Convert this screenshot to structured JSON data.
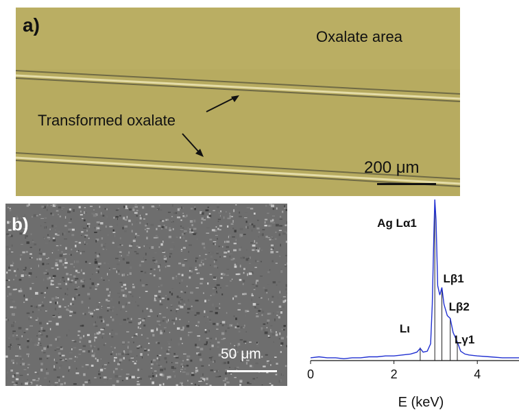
{
  "panel_a": {
    "label": "a)",
    "region_label": "Oxalate area",
    "annotation": "Transformed oxalate",
    "scale_bar": "200 μm",
    "bg_color": "#b9ad62"
  },
  "panel_b": {
    "label": "b)",
    "scale_bar": "50 μm"
  },
  "chart_data": {
    "type": "line",
    "xlabel": "E (keV)",
    "ylabel": "",
    "xlim": [
      0,
      5
    ],
    "x_ticks": [
      "0",
      "2",
      "4"
    ],
    "peak_labels": [
      {
        "text": "Ag Lα1",
        "energy": 2.98
      },
      {
        "text": "Lβ1",
        "energy": 3.15
      },
      {
        "text": "Lβ2",
        "energy": 3.35
      },
      {
        "text": "Lι",
        "energy": 2.63
      },
      {
        "text": "Lγ1",
        "energy": 3.52
      }
    ],
    "reference_lines": [
      2.63,
      2.98,
      3.15,
      3.35,
      3.52
    ],
    "series": [
      {
        "color": "#1f2fd1",
        "points": [
          [
            0,
            3
          ],
          [
            0.2,
            4
          ],
          [
            0.4,
            3
          ],
          [
            0.6,
            3
          ],
          [
            0.8,
            2
          ],
          [
            1.0,
            3
          ],
          [
            1.2,
            3
          ],
          [
            1.4,
            4
          ],
          [
            1.6,
            4
          ],
          [
            1.8,
            5
          ],
          [
            2.0,
            5
          ],
          [
            2.2,
            6
          ],
          [
            2.4,
            7
          ],
          [
            2.55,
            9
          ],
          [
            2.63,
            13
          ],
          [
            2.7,
            9
          ],
          [
            2.8,
            10
          ],
          [
            2.88,
            18
          ],
          [
            2.92,
            60
          ],
          [
            2.96,
            140
          ],
          [
            2.98,
            172
          ],
          [
            3.01,
            150
          ],
          [
            3.05,
            80
          ],
          [
            3.1,
            70
          ],
          [
            3.15,
            78
          ],
          [
            3.2,
            60
          ],
          [
            3.28,
            48
          ],
          [
            3.35,
            45
          ],
          [
            3.42,
            30
          ],
          [
            3.52,
            20
          ],
          [
            3.6,
            10
          ],
          [
            3.7,
            7
          ],
          [
            3.8,
            6
          ],
          [
            4.0,
            5
          ],
          [
            4.3,
            4
          ],
          [
            4.6,
            3
          ],
          [
            4.8,
            3
          ],
          [
            5.0,
            3
          ]
        ]
      }
    ],
    "line_color": "#1f2fd1"
  }
}
